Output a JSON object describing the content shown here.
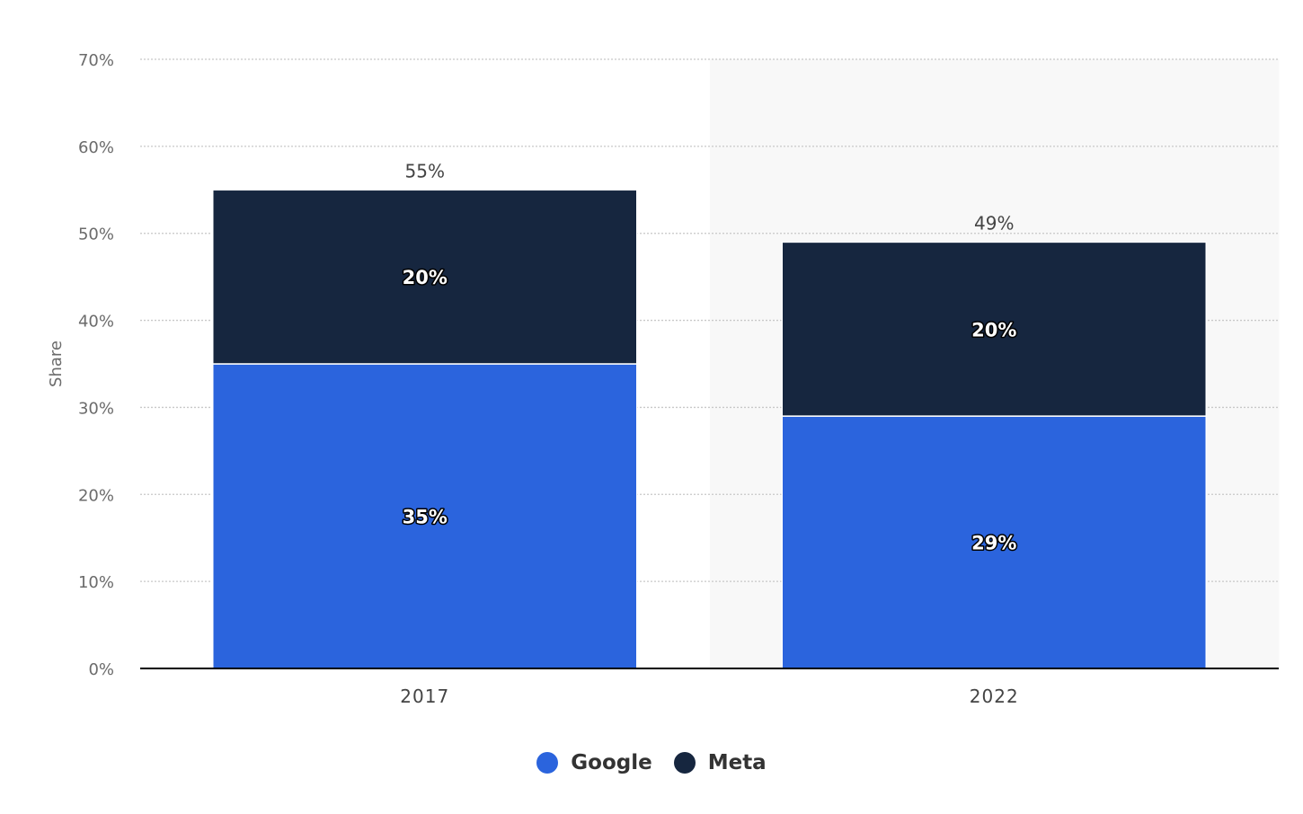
{
  "chart_data": {
    "type": "bar",
    "stacked": true,
    "categories": [
      "2017",
      "2022"
    ],
    "series": [
      {
        "name": "Google",
        "values": [
          35,
          29
        ],
        "labels": [
          "35%",
          "29%"
        ],
        "color": "#2b64dd"
      },
      {
        "name": "Meta",
        "values": [
          20,
          20
        ],
        "labels": [
          "20%",
          "20%"
        ],
        "color": "#16263f"
      }
    ],
    "totals": [
      55,
      49
    ],
    "total_labels": [
      "55%",
      "49%"
    ],
    "ylabel": "Share",
    "xlabel": "",
    "ylim": [
      0,
      70
    ],
    "yticks": [
      0,
      10,
      20,
      30,
      40,
      50,
      60,
      70
    ],
    "ytick_labels": [
      "0%",
      "10%",
      "20%",
      "30%",
      "40%",
      "50%",
      "60%",
      "70%"
    ],
    "grid": true,
    "grid_style": "dotted",
    "highlight_category": "2022",
    "legend_position": "bottom-center"
  },
  "colors": {
    "google": "#2b64dd",
    "meta": "#16263f",
    "highlight_background": "#f8f8f8",
    "grid": "#c8c8c8",
    "axis": "#000000"
  }
}
